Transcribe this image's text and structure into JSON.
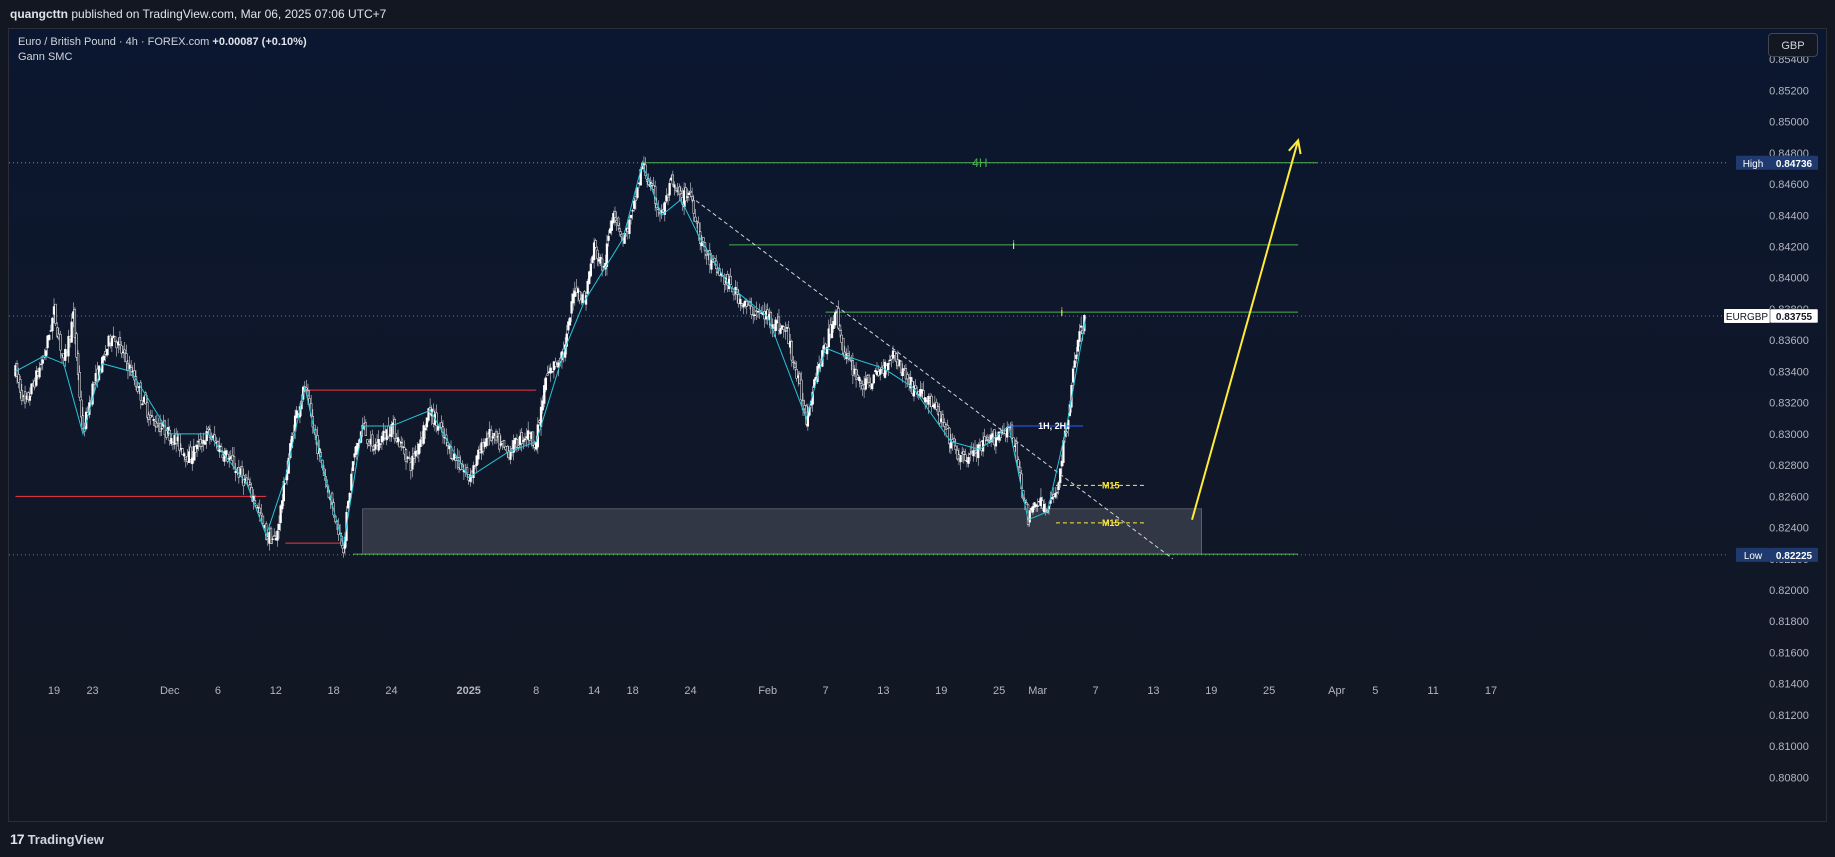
{
  "header": {
    "author": "quangcttn",
    "published_text": "published on TradingView.com, Mar 06, 2025 07:06 UTC+7"
  },
  "legend": {
    "symbol_line": "Euro / British Pound · 4h · FOREX.com",
    "change": "+0.00087 (+0.10%)",
    "indicator": "Gann SMC"
  },
  "currency_button": "GBP",
  "footer": {
    "brand": "TradingView"
  },
  "colors": {
    "background": "#0b1730",
    "candle_up": "#ffffff",
    "candle_down": "#ffffff",
    "zigzag": "#26c6da",
    "green_level": "#4caf50",
    "red_level": "#f23645",
    "yellow_arrow": "#ffeb3b",
    "zone": "#5d606b"
  },
  "chart_data": {
    "type": "candlestick",
    "symbol": "EURGBP",
    "timeframe": "4h",
    "ylim": [
      0.807,
      0.8558
    ],
    "y_ticks": [
      "0.85400",
      "0.85200",
      "0.85000",
      "0.84800",
      "0.84600",
      "0.84400",
      "0.84200",
      "0.84000",
      "0.83800",
      "0.83600",
      "0.83400",
      "0.83200",
      "0.83000",
      "0.82800",
      "0.82600",
      "0.82400",
      "0.82200",
      "0.82000",
      "0.81800",
      "0.81600",
      "0.81400",
      "0.81200",
      "0.81000",
      "0.80800"
    ],
    "x_ticks": [
      {
        "label": "19",
        "date": "2024-11-19"
      },
      {
        "label": "23",
        "date": "2024-11-23"
      },
      {
        "label": "Dec",
        "date": "2024-12-01"
      },
      {
        "label": "6",
        "date": "2024-12-06"
      },
      {
        "label": "12",
        "date": "2024-12-12"
      },
      {
        "label": "18",
        "date": "2024-12-18"
      },
      {
        "label": "24",
        "date": "2024-12-24"
      },
      {
        "label": "2025",
        "date": "2025-01-01"
      },
      {
        "label": "8",
        "date": "2025-01-08"
      },
      {
        "label": "14",
        "date": "2025-01-14"
      },
      {
        "label": "18",
        "date": "2025-01-18"
      },
      {
        "label": "24",
        "date": "2025-01-24"
      },
      {
        "label": "Feb",
        "date": "2025-02-01"
      },
      {
        "label": "7",
        "date": "2025-02-07"
      },
      {
        "label": "13",
        "date": "2025-02-13"
      },
      {
        "label": "19",
        "date": "2025-02-19"
      },
      {
        "label": "25",
        "date": "2025-02-25"
      },
      {
        "label": "Mar",
        "date": "2025-03-01"
      },
      {
        "label": "7",
        "date": "2025-03-07"
      },
      {
        "label": "13",
        "date": "2025-03-13"
      },
      {
        "label": "19",
        "date": "2025-03-19"
      },
      {
        "label": "25",
        "date": "2025-03-25"
      },
      {
        "label": "Apr",
        "date": "2025-04-01"
      },
      {
        "label": "5",
        "date": "2025-04-05"
      },
      {
        "label": "11",
        "date": "2025-04-11"
      },
      {
        "label": "17",
        "date": "2025-04-17"
      }
    ],
    "price_path": [
      [
        "2024-11-15",
        0.834
      ],
      [
        "2024-11-16",
        0.8318
      ],
      [
        "2024-11-18",
        0.835
      ],
      [
        "2024-11-19",
        0.8378
      ],
      [
        "2024-11-20",
        0.8345
      ],
      [
        "2024-11-21",
        0.8375
      ],
      [
        "2024-11-22",
        0.83
      ],
      [
        "2024-11-23",
        0.833
      ],
      [
        "2024-11-24",
        0.8345
      ],
      [
        "2024-11-25",
        0.8365
      ],
      [
        "2024-11-27",
        0.834
      ],
      [
        "2024-11-29",
        0.831
      ],
      [
        "2024-12-01",
        0.83
      ],
      [
        "2024-12-03",
        0.8285
      ],
      [
        "2024-12-05",
        0.83
      ],
      [
        "2024-12-07",
        0.8285
      ],
      [
        "2024-12-09",
        0.8268
      ],
      [
        "2024-12-10",
        0.8255
      ],
      [
        "2024-12-11",
        0.8235
      ],
      [
        "2024-12-12",
        0.8232
      ],
      [
        "2024-12-13",
        0.8272
      ],
      [
        "2024-12-14",
        0.831
      ],
      [
        "2024-12-15",
        0.833
      ],
      [
        "2024-12-16",
        0.83
      ],
      [
        "2024-12-17",
        0.8275
      ],
      [
        "2024-12-18",
        0.825
      ],
      [
        "2024-12-19",
        0.8228
      ],
      [
        "2024-12-20",
        0.8282
      ],
      [
        "2024-12-21",
        0.8305
      ],
      [
        "2024-12-22",
        0.829
      ],
      [
        "2024-12-24",
        0.8305
      ],
      [
        "2024-12-26",
        0.828
      ],
      [
        "2024-12-28",
        0.8315
      ],
      [
        "2024-12-30",
        0.829
      ],
      [
        "2025-01-01",
        0.8272
      ],
      [
        "2025-01-03",
        0.83
      ],
      [
        "2025-01-05",
        0.8288
      ],
      [
        "2025-01-07",
        0.83
      ],
      [
        "2025-01-08",
        0.8295
      ],
      [
        "2025-01-09",
        0.8335
      ],
      [
        "2025-01-11",
        0.8355
      ],
      [
        "2025-01-12",
        0.8395
      ],
      [
        "2025-01-13",
        0.8385
      ],
      [
        "2025-01-14",
        0.842
      ],
      [
        "2025-01-15",
        0.8405
      ],
      [
        "2025-01-16",
        0.8445
      ],
      [
        "2025-01-17",
        0.8425
      ],
      [
        "2025-01-18",
        0.844
      ],
      [
        "2025-01-19",
        0.8473
      ],
      [
        "2025-01-20",
        0.8455
      ],
      [
        "2025-01-21",
        0.844
      ],
      [
        "2025-01-22",
        0.846
      ],
      [
        "2025-01-23",
        0.845
      ],
      [
        "2025-01-24",
        0.8455
      ],
      [
        "2025-01-25",
        0.8425
      ],
      [
        "2025-01-26",
        0.841
      ],
      [
        "2025-01-28",
        0.8395
      ],
      [
        "2025-01-30",
        0.838
      ],
      [
        "2025-02-01",
        0.8375
      ],
      [
        "2025-02-03",
        0.8365
      ],
      [
        "2025-02-05",
        0.831
      ],
      [
        "2025-02-06",
        0.834
      ],
      [
        "2025-02-07",
        0.8355
      ],
      [
        "2025-02-08",
        0.838
      ],
      [
        "2025-02-09",
        0.835
      ],
      [
        "2025-02-11",
        0.833
      ],
      [
        "2025-02-13",
        0.8342
      ],
      [
        "2025-02-14",
        0.8352
      ],
      [
        "2025-02-16",
        0.833
      ],
      [
        "2025-02-18",
        0.832
      ],
      [
        "2025-02-20",
        0.8295
      ],
      [
        "2025-02-21",
        0.8283
      ],
      [
        "2025-02-23",
        0.829
      ],
      [
        "2025-02-25",
        0.83
      ],
      [
        "2025-02-26",
        0.8305
      ],
      [
        "2025-02-27",
        0.828
      ],
      [
        "2025-02-28",
        0.8245
      ],
      [
        "2025-03-01",
        0.8258
      ],
      [
        "2025-03-02",
        0.825
      ],
      [
        "2025-03-03",
        0.8265
      ],
      [
        "2025-03-04",
        0.8305
      ],
      [
        "2025-03-05",
        0.8355
      ],
      [
        "2025-03-06",
        0.8375
      ]
    ],
    "levels": [
      {
        "label": "4H",
        "price": 0.84736,
        "from": "2025-01-19",
        "to": "2025-03-30",
        "color": "#4caf50"
      },
      {
        "label": "i",
        "price": 0.8421,
        "from": "2025-01-28",
        "to": "2025-03-28",
        "color": "#4caf50"
      },
      {
        "label": "i",
        "price": 0.8378,
        "from": "2025-02-07",
        "to": "2025-03-28",
        "color": "#4caf50"
      },
      {
        "label": "",
        "price": 0.8223,
        "from": "2024-12-20",
        "to": "2025-03-28",
        "color": "#4caf50"
      },
      {
        "label": "",
        "price": 0.826,
        "from": "2024-11-15",
        "to": "2024-12-11",
        "color": "#f23645"
      },
      {
        "label": "",
        "price": 0.8328,
        "from": "2024-12-15",
        "to": "2025-01-08",
        "color": "#f23645"
      },
      {
        "label": "",
        "price": 0.823,
        "from": "2024-12-13",
        "to": "2024-12-19",
        "color": "#f23645"
      }
    ],
    "labels": [
      {
        "text": "1H, 2H",
        "date": "2025-02-29",
        "price": 0.8305,
        "color": "#ffffff"
      },
      {
        "text": "M15",
        "date": "2025-03-06",
        "price": 0.8267,
        "color": "#ffeb3b"
      },
      {
        "text": "M15",
        "date": "2025-03-06",
        "price": 0.8243,
        "color": "#ffeb3b"
      }
    ],
    "zone": {
      "from": "2024-12-21",
      "to": "2025-03-18",
      "top": 0.8252,
      "bottom": 0.8223
    },
    "price_labels": [
      {
        "name": "High",
        "value": "0.84736",
        "price": 0.84736
      },
      {
        "name": "EURGBP",
        "value": "0.83755",
        "price": 0.83755
      },
      {
        "name": "Low",
        "value": "0.82225",
        "price": 0.82225
      }
    ],
    "projection": {
      "from": [
        "2025-03-17",
        0.8245
      ],
      "to": [
        "2025-03-28",
        0.8488
      ]
    }
  }
}
